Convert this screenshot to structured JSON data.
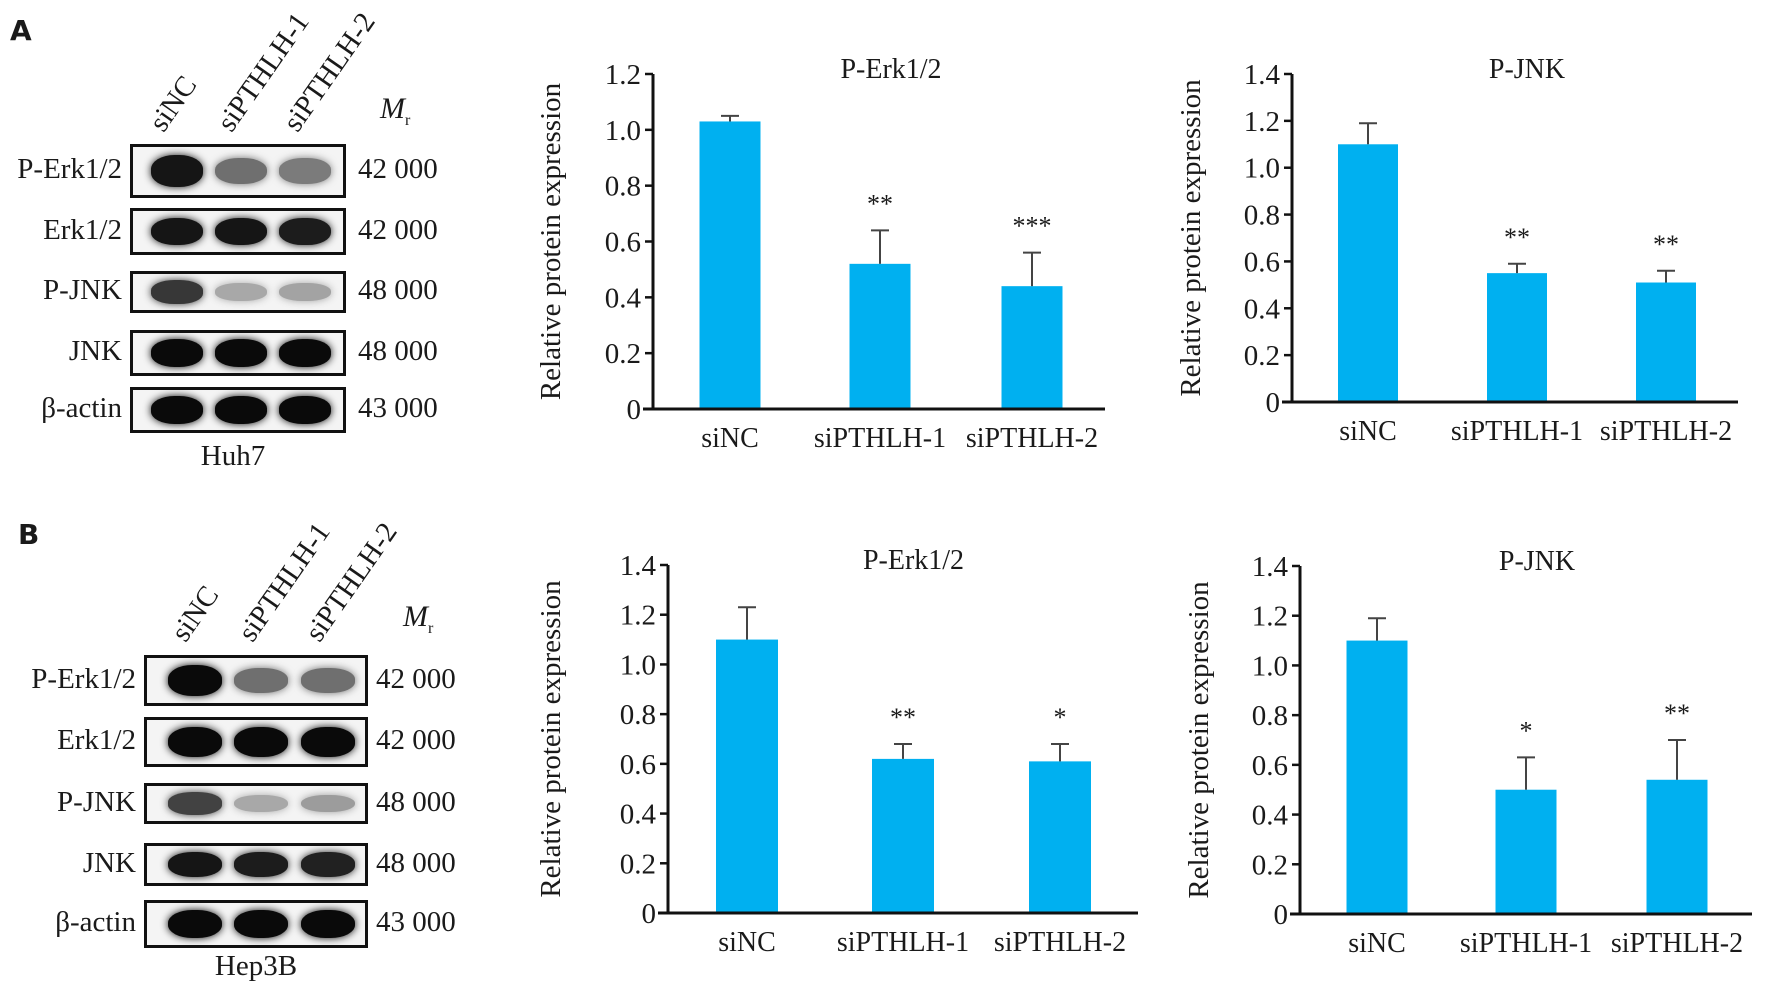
{
  "figure": {
    "panels": [
      {
        "letter": "A",
        "cell_line": "Huh7",
        "lanes": [
          "siNC",
          "siPTHLH-1",
          "siPTHLH-2"
        ],
        "mr_header": "M",
        "mr_sub": "r",
        "blots": [
          {
            "protein": "P-Erk1/2",
            "mr": "42 000",
            "intensity": [
              0.95,
              0.55,
              0.5
            ]
          },
          {
            "protein": "Erk1/2",
            "mr": "42 000",
            "intensity": [
              0.95,
              0.95,
              0.92
            ]
          },
          {
            "protein": "P-JNK",
            "mr": "48 000",
            "intensity": [
              0.8,
              0.3,
              0.32
            ]
          },
          {
            "protein": "JNK",
            "mr": "48 000",
            "intensity": [
              1.0,
              1.0,
              1.0
            ]
          },
          {
            "protein": "β-actin",
            "mr": "43 000",
            "intensity": [
              1.0,
              1.0,
              1.0
            ]
          }
        ]
      },
      {
        "letter": "B",
        "cell_line": "Hep3B",
        "lanes": [
          "siNC",
          "siPTHLH-1",
          "siPTHLH-2"
        ],
        "mr_header": "M",
        "mr_sub": "r",
        "blots": [
          {
            "protein": "P-Erk1/2",
            "mr": "42 000",
            "intensity": [
              1.0,
              0.55,
              0.55
            ]
          },
          {
            "protein": "Erk1/2",
            "mr": "42 000",
            "intensity": [
              1.0,
              1.0,
              1.0
            ]
          },
          {
            "protein": "P-JNK",
            "mr": "48 000",
            "intensity": [
              0.75,
              0.3,
              0.35
            ]
          },
          {
            "protein": "JNK",
            "mr": "48 000",
            "intensity": [
              0.95,
              0.92,
              0.9
            ]
          },
          {
            "protein": "β-actin",
            "mr": "43 000",
            "intensity": [
              1.0,
              1.0,
              1.0
            ]
          }
        ]
      }
    ]
  },
  "chart_data": [
    {
      "id": "A-perk",
      "type": "bar",
      "title": "P-Erk1/2",
      "xlabel": "",
      "ylabel": "Relative protein expression",
      "categories": [
        "siNC",
        "siPTHLH-1",
        "siPTHLH-2"
      ],
      "values": [
        1.03,
        0.52,
        0.44
      ],
      "errors": [
        0.02,
        0.12,
        0.12
      ],
      "significance": [
        "",
        "**",
        "***"
      ],
      "ylim": [
        0,
        1.2
      ],
      "yticks": [
        "0",
        "0.2",
        "0.4",
        "0.6",
        "0.8",
        "1.0",
        "1.2"
      ],
      "bar_color": "#00b0f0",
      "grid": false,
      "legend": "none"
    },
    {
      "id": "A-pjnk",
      "type": "bar",
      "title": "P-JNK",
      "xlabel": "",
      "ylabel": "Relative protein expression",
      "categories": [
        "siNC",
        "siPTHLH-1",
        "siPTHLH-2"
      ],
      "values": [
        1.1,
        0.55,
        0.51
      ],
      "errors": [
        0.09,
        0.04,
        0.05
      ],
      "significance": [
        "",
        "**",
        "**"
      ],
      "ylim": [
        0,
        1.4
      ],
      "yticks": [
        "0",
        "0.2",
        "0.4",
        "0.6",
        "0.8",
        "1.0",
        "1.2",
        "1.4"
      ],
      "bar_color": "#00b0f0",
      "grid": false,
      "legend": "none"
    },
    {
      "id": "B-perk",
      "type": "bar",
      "title": "P-Erk1/2",
      "xlabel": "",
      "ylabel": "Relative protein expression",
      "categories": [
        "siNC",
        "siPTHLH-1",
        "siPTHLH-2"
      ],
      "values": [
        1.1,
        0.62,
        0.61
      ],
      "errors": [
        0.13,
        0.06,
        0.07
      ],
      "significance": [
        "",
        "**",
        "*"
      ],
      "ylim": [
        0,
        1.4
      ],
      "yticks": [
        "0",
        "0.2",
        "0.4",
        "0.6",
        "0.8",
        "1.0",
        "1.2",
        "1.4"
      ],
      "bar_color": "#00b0f0",
      "grid": false,
      "legend": "none"
    },
    {
      "id": "B-pjnk",
      "type": "bar",
      "title": "P-JNK",
      "xlabel": "",
      "ylabel": "Relative protein expression",
      "categories": [
        "siNC",
        "siPTHLH-1",
        "siPTHLH-2"
      ],
      "values": [
        1.1,
        0.5,
        0.54
      ],
      "errors": [
        0.09,
        0.13,
        0.16
      ],
      "significance": [
        "",
        "*",
        "**"
      ],
      "ylim": [
        0,
        1.4
      ],
      "yticks": [
        "0",
        "0.2",
        "0.4",
        "0.6",
        "0.8",
        "1.0",
        "1.2",
        "1.4"
      ],
      "bar_color": "#00b0f0",
      "grid": false,
      "legend": "none"
    }
  ]
}
